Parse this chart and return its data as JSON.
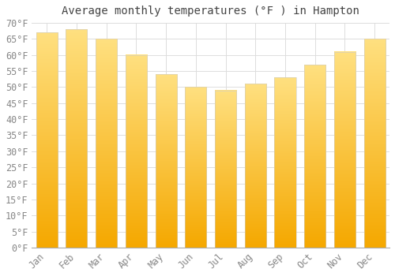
{
  "title": "Average monthly temperatures (°F ) in Hampton",
  "months": [
    "Jan",
    "Feb",
    "Mar",
    "Apr",
    "May",
    "Jun",
    "Jul",
    "Aug",
    "Sep",
    "Oct",
    "Nov",
    "Dec"
  ],
  "values": [
    67,
    68,
    65,
    60,
    54,
    50,
    49,
    51,
    53,
    57,
    61,
    65
  ],
  "bar_color_bottom": "#F5A800",
  "bar_color_top": "#FFE080",
  "bar_edge_color": "#DDDDDD",
  "background_color": "#FFFFFF",
  "grid_color": "#DDDDDD",
  "ylim": [
    0,
    70
  ],
  "ytick_step": 5,
  "title_fontsize": 10,
  "tick_fontsize": 8.5,
  "figsize": [
    5.0,
    3.5
  ],
  "dpi": 100
}
